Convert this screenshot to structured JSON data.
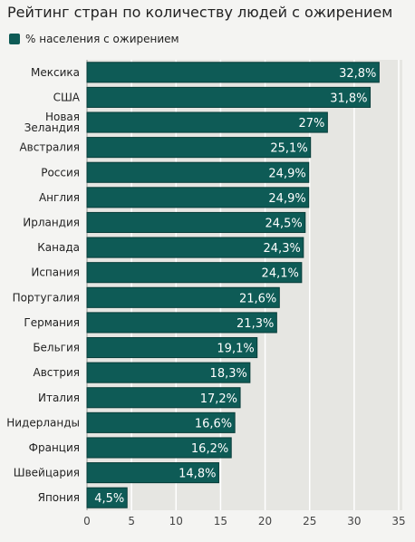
{
  "chart_data": {
    "type": "bar",
    "orientation": "horizontal",
    "title": "Рейтинг стран по количеству людей с ожирением",
    "legend": {
      "position": "top-left",
      "entries": [
        "% населения с ожирением"
      ]
    },
    "categories": [
      "Мексика",
      "США",
      "Новая\nЗеландия",
      "Австралия",
      "Россия",
      "Англия",
      "Ирландия",
      "Канада",
      "Испания",
      "Португалия",
      "Германия",
      "Бельгия",
      "Австрия",
      "Италия",
      "Нидерланды",
      "Франция",
      "Швейцария",
      "Япония"
    ],
    "values": [
      32.8,
      31.8,
      27,
      25.1,
      24.9,
      24.9,
      24.5,
      24.3,
      24.1,
      21.6,
      21.3,
      19.1,
      18.3,
      17.2,
      16.6,
      16.2,
      14.8,
      4.5
    ],
    "value_labels": [
      "32,8%",
      "31,8%",
      "27%",
      "25,1%",
      "24,9%",
      "24,9%",
      "24,5%",
      "24,3%",
      "24,1%",
      "21,6%",
      "21,3%",
      "19,1%",
      "18,3%",
      "17,2%",
      "16,6%",
      "16,2%",
      "14,8%",
      "4,5%"
    ],
    "xlim": [
      0,
      35
    ],
    "xticks": [
      0,
      5,
      10,
      15,
      20,
      25,
      30,
      35
    ],
    "grid": true,
    "colors": {
      "bar": "#0e5b56",
      "bar_border": "#083c39",
      "plot_bg": "#e6e6e2",
      "grid": "#ffffff"
    }
  }
}
